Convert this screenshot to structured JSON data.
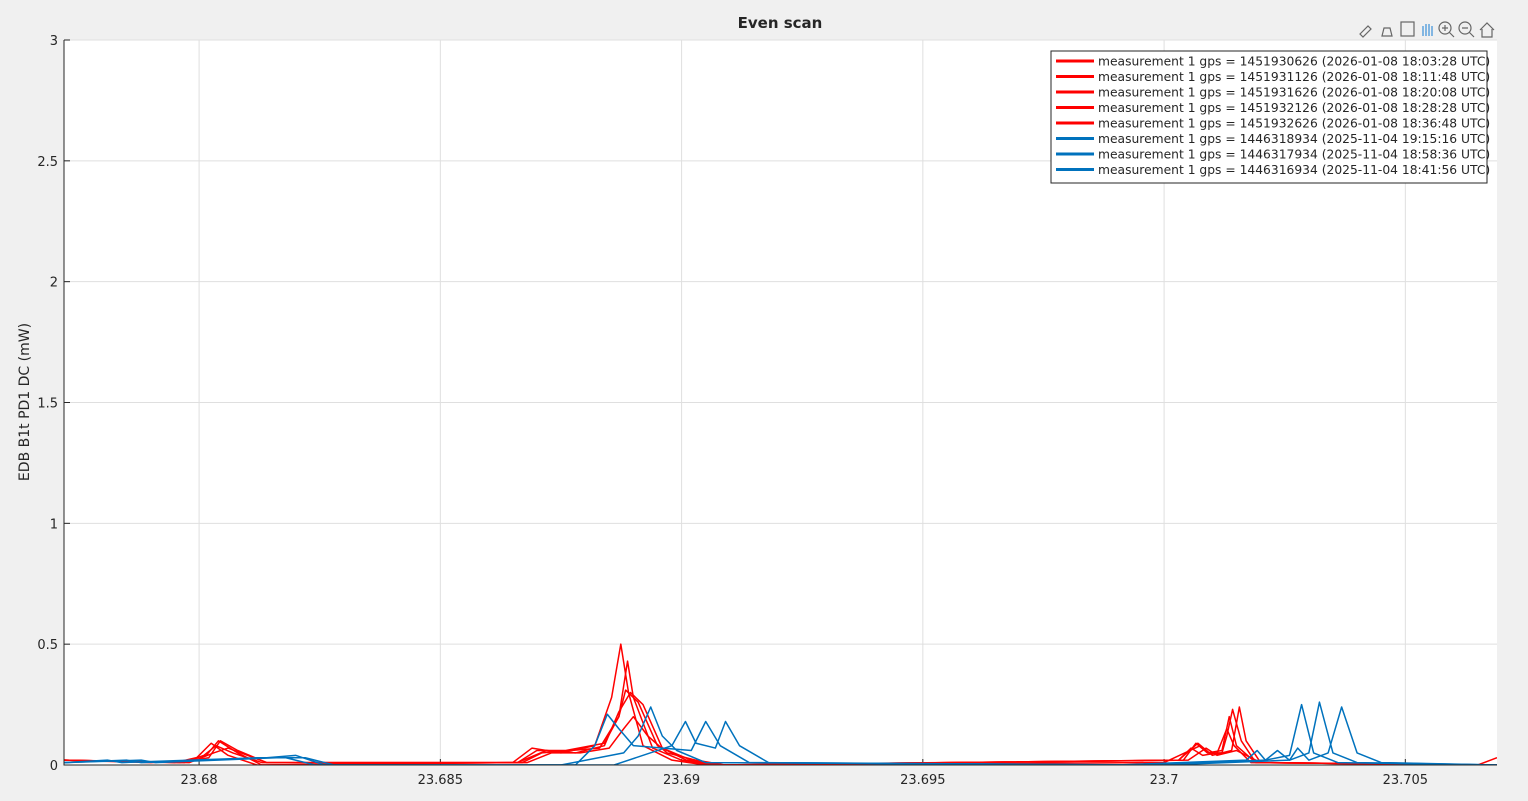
{
  "chart_data": {
    "type": "line",
    "title": "Even scan",
    "y_label": "EDB B1t PD1 DC (mW)",
    "xlim": [
      23.6772,
      23.7069
    ],
    "ylim": [
      0,
      3
    ],
    "xticks": [
      23.68,
      23.685,
      23.69,
      23.695,
      23.7,
      23.705
    ],
    "yticks": [
      0,
      0.5,
      1,
      1.5,
      2,
      2.5,
      3
    ],
    "grid": true,
    "legend_position": "northeast",
    "series": [
      {
        "name": "measurement 1 gps = 1451930626 (2026-01-08 18:03:28 UTC)",
        "color": "#ff0000",
        "x": [
          23.6772,
          23.679,
          23.6799,
          23.68025,
          23.6806,
          23.6812,
          23.6865,
          23.6869,
          23.6875,
          23.6882,
          23.68855,
          23.68874,
          23.6889,
          23.6892,
          23.6898,
          23.6905,
          23.7,
          23.70075,
          23.7009,
          23.7012,
          23.7013,
          23.70142,
          23.7016,
          23.7019,
          23.7069
        ],
        "values": [
          0.02,
          0.01,
          0.02,
          0.09,
          0.04,
          0.0,
          0.01,
          0.07,
          0.05,
          0.08,
          0.28,
          0.5,
          0.3,
          0.08,
          0.02,
          0.0,
          0.01,
          0.08,
          0.05,
          0.05,
          0.12,
          0.23,
          0.1,
          0.01,
          0.0
        ]
      },
      {
        "name": "measurement 1 gps = 1451931126 (2026-01-08 18:11:48 UTC)",
        "color": "#ff0000",
        "x": [
          23.6772,
          23.6795,
          23.68015,
          23.6804,
          23.6808,
          23.6813,
          23.6866,
          23.687,
          23.6876,
          23.6884,
          23.6887,
          23.68888,
          23.689,
          23.6894,
          23.69,
          23.6906,
          23.7003,
          23.7007,
          23.701,
          23.7014,
          23.70156,
          23.7017,
          23.702,
          23.7069
        ],
        "values": [
          0.02,
          0.01,
          0.04,
          0.1,
          0.05,
          0.0,
          0.01,
          0.06,
          0.06,
          0.09,
          0.2,
          0.43,
          0.28,
          0.07,
          0.02,
          0.0,
          0.02,
          0.09,
          0.04,
          0.06,
          0.24,
          0.1,
          0.01,
          0.0
        ]
      },
      {
        "name": "measurement 1 gps = 1451931626 (2026-01-08 18:20:08 UTC)",
        "color": "#ff0000",
        "x": [
          23.6772,
          23.6796,
          23.6802,
          23.68044,
          23.6808,
          23.6814,
          23.6867,
          23.6871,
          23.6877,
          23.6883,
          23.6887,
          23.68884,
          23.6891,
          23.6895,
          23.6901,
          23.6907,
          23.7004,
          23.70066,
          23.7009,
          23.7012,
          23.70135,
          23.7015,
          23.7019,
          23.7069
        ],
        "values": [
          0.02,
          0.01,
          0.03,
          0.1,
          0.06,
          0.01,
          0.01,
          0.05,
          0.06,
          0.07,
          0.2,
          0.31,
          0.26,
          0.08,
          0.02,
          0.0,
          0.02,
          0.09,
          0.05,
          0.06,
          0.2,
          0.08,
          0.01,
          0.0
        ]
      },
      {
        "name": "measurement 1 gps = 1451932126 (2026-01-08 18:28:28 UTC)",
        "color": "#ff0000",
        "x": [
          23.6772,
          23.6797,
          23.6801,
          23.68035,
          23.6807,
          23.6813,
          23.6866,
          23.6872,
          23.6878,
          23.6884,
          23.6887,
          23.68894,
          23.6892,
          23.6896,
          23.6902,
          23.6908,
          23.7003,
          23.70056,
          23.7008,
          23.7011,
          23.7013,
          23.70145,
          23.7018,
          23.7069
        ],
        "values": [
          0.02,
          0.01,
          0.04,
          0.08,
          0.05,
          0.01,
          0.01,
          0.06,
          0.05,
          0.08,
          0.22,
          0.3,
          0.25,
          0.07,
          0.02,
          0.0,
          0.02,
          0.07,
          0.04,
          0.05,
          0.15,
          0.08,
          0.01,
          0.0
        ]
      },
      {
        "name": "measurement 1 gps = 1451932626 (2026-01-08 18:36:48 UTC)",
        "color": "#ff0000",
        "x": [
          23.6772,
          23.6798,
          23.6803,
          23.6806,
          23.6814,
          23.6868,
          23.6873,
          23.6879,
          23.6885,
          23.6888,
          23.689,
          23.6893,
          23.6897,
          23.6903,
          23.6909,
          23.7005,
          23.70087,
          23.7011,
          23.7015,
          23.702,
          23.7065,
          23.7069
        ],
        "values": [
          0.02,
          0.01,
          0.05,
          0.07,
          0.01,
          0.01,
          0.05,
          0.05,
          0.07,
          0.15,
          0.2,
          0.12,
          0.05,
          0.02,
          0.0,
          0.02,
          0.07,
          0.04,
          0.06,
          0.01,
          0.0,
          0.03
        ]
      },
      {
        "name": "measurement 1 gps = 1446318934 (2025-11-04 19:15:16 UTC)",
        "color": "#0072bd",
        "x": [
          23.6772,
          23.6781,
          23.6784,
          23.6812,
          23.6818,
          23.6824,
          23.6875,
          23.6888,
          23.6891,
          23.68936,
          23.6896,
          23.6899,
          23.6905,
          23.699,
          23.7017,
          23.70193,
          23.7021,
          23.7026,
          23.70285,
          23.7031,
          23.7036,
          23.7069
        ],
        "values": [
          0.01,
          0.02,
          0.01,
          0.03,
          0.03,
          0.0,
          0.0,
          0.05,
          0.12,
          0.24,
          0.12,
          0.06,
          0.01,
          0.0,
          0.02,
          0.06,
          0.02,
          0.04,
          0.25,
          0.05,
          0.01,
          0.0
        ]
      },
      {
        "name": "measurement 1 gps = 1446317934 (2025-11-04 18:58:36 UTC)",
        "color": "#0072bd",
        "x": [
          23.6772,
          23.6785,
          23.6788,
          23.6814,
          23.682,
          23.6826,
          23.6878,
          23.6882,
          23.68846,
          23.6887,
          23.689,
          23.6902,
          23.6905,
          23.6908,
          23.6914,
          23.6995,
          23.7021,
          23.70235,
          23.7026,
          23.703,
          23.70322,
          23.7035,
          23.704,
          23.7069
        ],
        "values": [
          0.01,
          0.02,
          0.01,
          0.03,
          0.04,
          0.0,
          0.0,
          0.08,
          0.21,
          0.15,
          0.08,
          0.06,
          0.18,
          0.08,
          0.01,
          0.0,
          0.02,
          0.06,
          0.02,
          0.05,
          0.26,
          0.05,
          0.01,
          0.0
        ]
      },
      {
        "name": "measurement 1 gps = 1446316934 (2025-11-04 18:41:56 UTC)",
        "color": "#0072bd",
        "x": [
          23.6772,
          23.6788,
          23.6791,
          23.6816,
          23.6822,
          23.6828,
          23.6886,
          23.6898,
          23.69008,
          23.6903,
          23.6907,
          23.69091,
          23.6912,
          23.6918,
          23.7,
          23.7026,
          23.70277,
          23.703,
          23.7034,
          23.70368,
          23.704,
          23.7045,
          23.7069
        ],
        "values": [
          0.01,
          0.02,
          0.01,
          0.03,
          0.03,
          0.0,
          0.0,
          0.08,
          0.18,
          0.09,
          0.07,
          0.18,
          0.08,
          0.01,
          0.0,
          0.02,
          0.07,
          0.02,
          0.05,
          0.24,
          0.05,
          0.01,
          0.0
        ]
      }
    ]
  }
}
